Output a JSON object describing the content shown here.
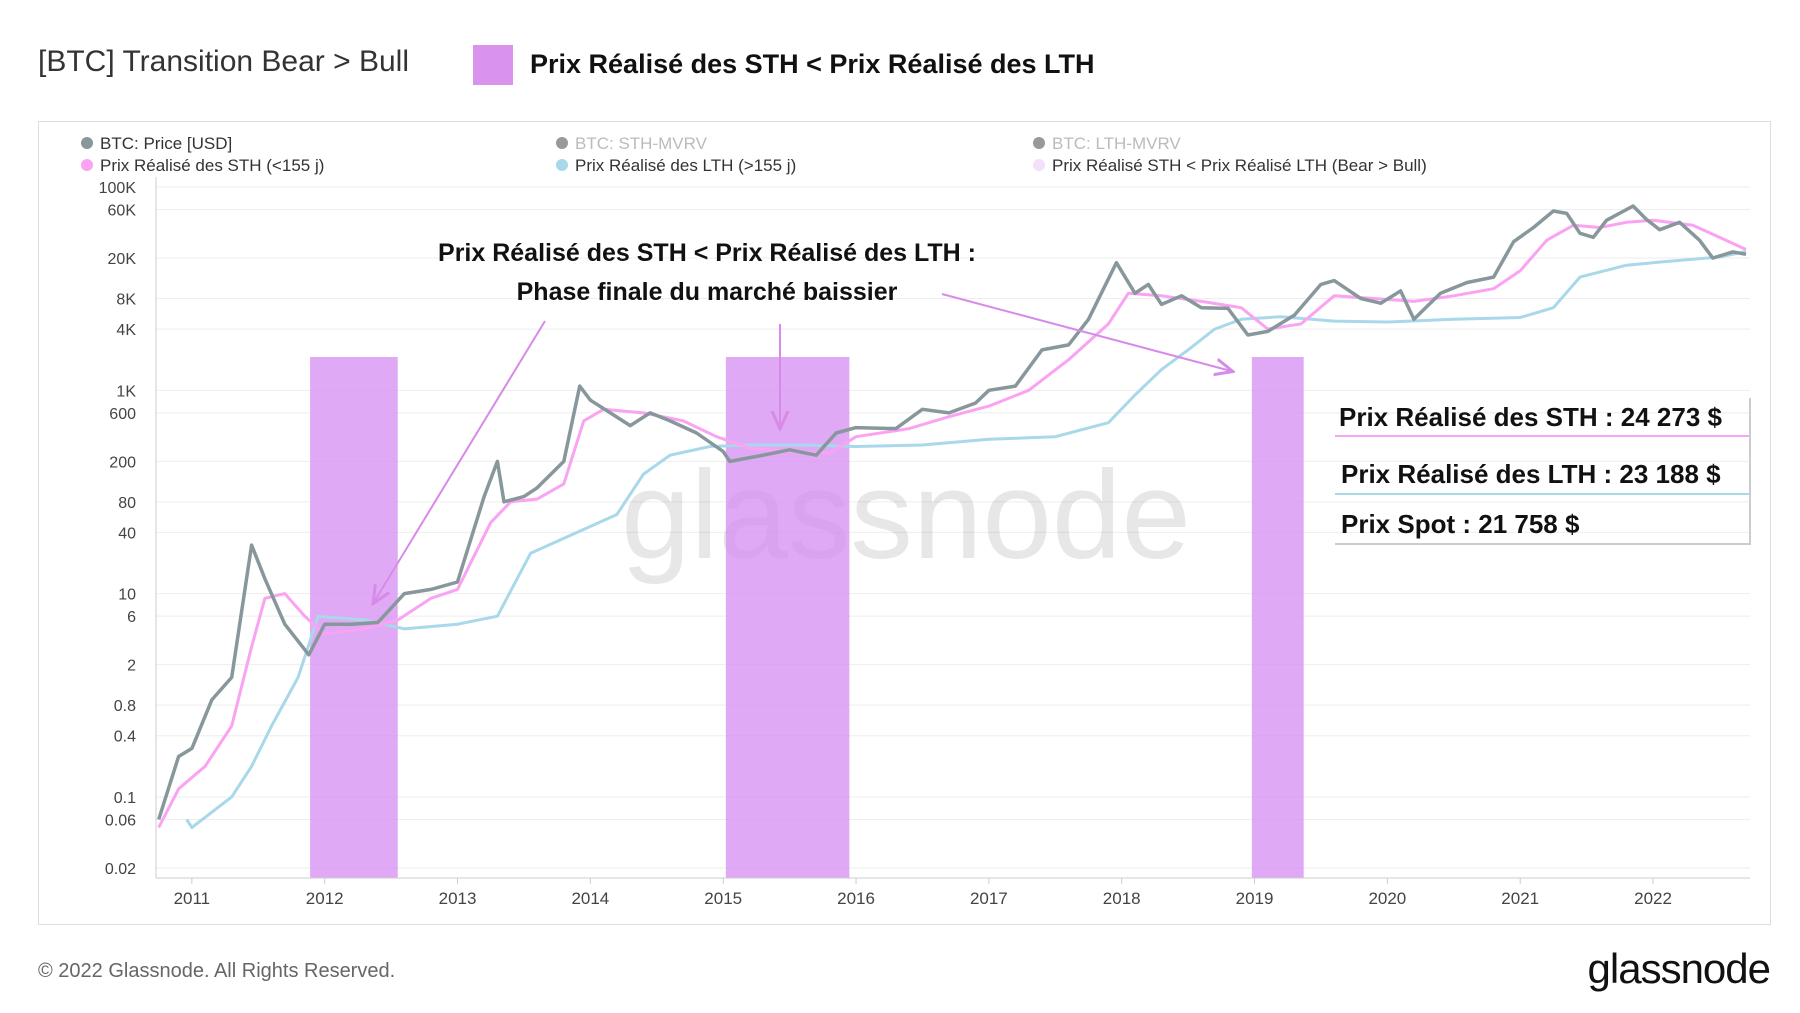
{
  "header": {
    "title": "[BTC] Transition Bear > Bull",
    "highlight_label": "Prix Réalisé des STH < Prix Réalisé des LTH",
    "highlight_color": "#d993ee"
  },
  "legend": [
    {
      "label": "BTC: Price [USD]",
      "color": "#87979b",
      "active": true
    },
    {
      "label": "BTC: STH-MVRV",
      "color": "#999999",
      "active": false
    },
    {
      "label": "BTC: LTH-MVRV",
      "color": "#999999",
      "active": false
    },
    {
      "label": "Prix Réalisé des STH (<155 j)",
      "color": "#f9a3f2",
      "active": true
    },
    {
      "label": "Prix Réalisé des LTH (>155 j)",
      "color": "#a8d8ea",
      "active": true
    },
    {
      "label": "Prix Réalisé STH < Prix Réalisé LTH (Bear > Bull)",
      "color": "#f3e0fa",
      "active": true
    }
  ],
  "annotations": {
    "headline_1": "Prix Réalisé des STH < Prix Réalisé des LTH :",
    "headline_2": "Phase finale du marché baissier",
    "sth_value": "Prix Réalisé des STH : 24 273 $",
    "lth_value": "Prix Réalisé des LTH : 23 188 $",
    "spot_value": "Prix Spot : 21 758 $"
  },
  "watermark": "glassnode",
  "footer": {
    "copyright": "© 2022 Glassnode. All Rights Reserved.",
    "logo": "glassnode"
  },
  "chart_data": {
    "type": "line",
    "yscale": "log",
    "ylim": [
      0.02,
      100000
    ],
    "xlim": [
      2010.7,
      2022.7
    ],
    "grid": true,
    "legend_position": "top",
    "y_ticks": [
      {
        "v": 100000,
        "l": "100K"
      },
      {
        "v": 60000,
        "l": "60K"
      },
      {
        "v": 20000,
        "l": "20K"
      },
      {
        "v": 8000,
        "l": "8K"
      },
      {
        "v": 4000,
        "l": "4K"
      },
      {
        "v": 1000,
        "l": "1K"
      },
      {
        "v": 600,
        "l": "600"
      },
      {
        "v": 200,
        "l": "200"
      },
      {
        "v": 80,
        "l": "80"
      },
      {
        "v": 40,
        "l": "40"
      },
      {
        "v": 10,
        "l": "10"
      },
      {
        "v": 6,
        "l": "6"
      },
      {
        "v": 2,
        "l": "2"
      },
      {
        "v": 0.8,
        "l": "0.8"
      },
      {
        "v": 0.4,
        "l": "0.4"
      },
      {
        "v": 0.1,
        "l": "0.1"
      },
      {
        "v": 0.06,
        "l": "0.06"
      },
      {
        "v": 0.02,
        "l": "0.02"
      }
    ],
    "x_ticks": [
      "2011",
      "2012",
      "2013",
      "2014",
      "2015",
      "2016",
      "2017",
      "2018",
      "2019",
      "2020",
      "2021",
      "2022"
    ],
    "shaded_periods": [
      [
        2011.89,
        2012.55
      ],
      [
        2015.02,
        2015.95
      ],
      [
        2018.98,
        2019.37
      ]
    ],
    "series": [
      {
        "name": "Prix Réalisé des LTH (>155 j)",
        "color": "#a8d8ea",
        "points": [
          [
            2010.96,
            0.06
          ],
          [
            2011.0,
            0.05
          ],
          [
            2011.3,
            0.1
          ],
          [
            2011.45,
            0.2
          ],
          [
            2011.6,
            0.5
          ],
          [
            2011.8,
            1.5
          ],
          [
            2011.95,
            6
          ],
          [
            2012.3,
            5.5
          ],
          [
            2012.6,
            4.5
          ],
          [
            2013.0,
            5
          ],
          [
            2013.3,
            6
          ],
          [
            2013.55,
            25
          ],
          [
            2013.9,
            40
          ],
          [
            2014.2,
            60
          ],
          [
            2014.4,
            150
          ],
          [
            2014.6,
            230
          ],
          [
            2014.9,
            280
          ],
          [
            2015.2,
            290
          ],
          [
            2015.6,
            290
          ],
          [
            2016.0,
            280
          ],
          [
            2016.5,
            290
          ],
          [
            2017.0,
            330
          ],
          [
            2017.5,
            350
          ],
          [
            2017.9,
            480
          ],
          [
            2018.1,
            900
          ],
          [
            2018.3,
            1600
          ],
          [
            2018.5,
            2500
          ],
          [
            2018.7,
            4000
          ],
          [
            2018.9,
            5000
          ],
          [
            2019.2,
            5300
          ],
          [
            2019.6,
            4800
          ],
          [
            2020.0,
            4700
          ],
          [
            2020.5,
            5000
          ],
          [
            2021.0,
            5200
          ],
          [
            2021.25,
            6500
          ],
          [
            2021.45,
            13000
          ],
          [
            2021.8,
            17000
          ],
          [
            2022.1,
            18500
          ],
          [
            2022.5,
            20500
          ],
          [
            2022.7,
            23188
          ]
        ]
      },
      {
        "name": "Prix Réalisé des STH (<155 j)",
        "color": "#f9a3f2",
        "points": [
          [
            2010.75,
            0.05
          ],
          [
            2010.9,
            0.12
          ],
          [
            2011.1,
            0.2
          ],
          [
            2011.3,
            0.5
          ],
          [
            2011.45,
            3
          ],
          [
            2011.55,
            9
          ],
          [
            2011.7,
            10
          ],
          [
            2011.85,
            6
          ],
          [
            2012.0,
            4
          ],
          [
            2012.3,
            4.5
          ],
          [
            2012.55,
            5.5
          ],
          [
            2012.8,
            9
          ],
          [
            2013.0,
            11
          ],
          [
            2013.25,
            50
          ],
          [
            2013.4,
            80
          ],
          [
            2013.6,
            85
          ],
          [
            2013.8,
            120
          ],
          [
            2013.95,
            500
          ],
          [
            2014.1,
            650
          ],
          [
            2014.4,
            600
          ],
          [
            2014.7,
            500
          ],
          [
            2014.95,
            350
          ],
          [
            2015.2,
            270
          ],
          [
            2015.5,
            250
          ],
          [
            2015.8,
            240
          ],
          [
            2016.0,
            350
          ],
          [
            2016.4,
            420
          ],
          [
            2016.7,
            550
          ],
          [
            2017.0,
            700
          ],
          [
            2017.3,
            1000
          ],
          [
            2017.6,
            2000
          ],
          [
            2017.9,
            4500
          ],
          [
            2018.05,
            9000
          ],
          [
            2018.3,
            8500
          ],
          [
            2018.6,
            7500
          ],
          [
            2018.9,
            6500
          ],
          [
            2019.1,
            4000
          ],
          [
            2019.35,
            4500
          ],
          [
            2019.6,
            8500
          ],
          [
            2019.9,
            8000
          ],
          [
            2020.2,
            7500
          ],
          [
            2020.5,
            8500
          ],
          [
            2020.8,
            10000
          ],
          [
            2021.0,
            15000
          ],
          [
            2021.2,
            30000
          ],
          [
            2021.4,
            42000
          ],
          [
            2021.6,
            40000
          ],
          [
            2021.8,
            45000
          ],
          [
            2022.0,
            47000
          ],
          [
            2022.3,
            42000
          ],
          [
            2022.5,
            32000
          ],
          [
            2022.7,
            24273
          ]
        ]
      },
      {
        "name": "BTC: Price [USD]",
        "color": "#87979b",
        "points": [
          [
            2010.75,
            0.06
          ],
          [
            2010.9,
            0.25
          ],
          [
            2011.0,
            0.3
          ],
          [
            2011.15,
            0.9
          ],
          [
            2011.3,
            1.5
          ],
          [
            2011.45,
            30
          ],
          [
            2011.55,
            14
          ],
          [
            2011.7,
            5
          ],
          [
            2011.88,
            2.5
          ],
          [
            2012.0,
            5
          ],
          [
            2012.2,
            5
          ],
          [
            2012.4,
            5.2
          ],
          [
            2012.6,
            10
          ],
          [
            2012.8,
            11
          ],
          [
            2013.0,
            13
          ],
          [
            2013.2,
            90
          ],
          [
            2013.3,
            200
          ],
          [
            2013.35,
            80
          ],
          [
            2013.5,
            90
          ],
          [
            2013.6,
            110
          ],
          [
            2013.8,
            200
          ],
          [
            2013.92,
            1100
          ],
          [
            2014.0,
            800
          ],
          [
            2014.15,
            600
          ],
          [
            2014.3,
            450
          ],
          [
            2014.45,
            600
          ],
          [
            2014.6,
            500
          ],
          [
            2014.8,
            380
          ],
          [
            2015.0,
            250
          ],
          [
            2015.05,
            200
          ],
          [
            2015.3,
            230
          ],
          [
            2015.5,
            260
          ],
          [
            2015.7,
            230
          ],
          [
            2015.85,
            380
          ],
          [
            2016.0,
            430
          ],
          [
            2016.3,
            420
          ],
          [
            2016.5,
            650
          ],
          [
            2016.7,
            600
          ],
          [
            2016.9,
            750
          ],
          [
            2017.0,
            1000
          ],
          [
            2017.2,
            1100
          ],
          [
            2017.4,
            2500
          ],
          [
            2017.6,
            2800
          ],
          [
            2017.75,
            5000
          ],
          [
            2017.96,
            18000
          ],
          [
            2018.1,
            9000
          ],
          [
            2018.2,
            11000
          ],
          [
            2018.3,
            7000
          ],
          [
            2018.45,
            8500
          ],
          [
            2018.6,
            6500
          ],
          [
            2018.8,
            6400
          ],
          [
            2018.95,
            3500
          ],
          [
            2019.1,
            3800
          ],
          [
            2019.3,
            5500
          ],
          [
            2019.5,
            11000
          ],
          [
            2019.6,
            12000
          ],
          [
            2019.8,
            8000
          ],
          [
            2019.95,
            7200
          ],
          [
            2020.1,
            9500
          ],
          [
            2020.2,
            5000
          ],
          [
            2020.4,
            9000
          ],
          [
            2020.6,
            11500
          ],
          [
            2020.8,
            13000
          ],
          [
            2020.95,
            29000
          ],
          [
            2021.1,
            40000
          ],
          [
            2021.25,
            58000
          ],
          [
            2021.35,
            55000
          ],
          [
            2021.45,
            35000
          ],
          [
            2021.55,
            32000
          ],
          [
            2021.65,
            47000
          ],
          [
            2021.85,
            65000
          ],
          [
            2021.95,
            48000
          ],
          [
            2022.05,
            38000
          ],
          [
            2022.2,
            45000
          ],
          [
            2022.35,
            30000
          ],
          [
            2022.45,
            20000
          ],
          [
            2022.6,
            23000
          ],
          [
            2022.7,
            21758
          ]
        ]
      }
    ]
  }
}
